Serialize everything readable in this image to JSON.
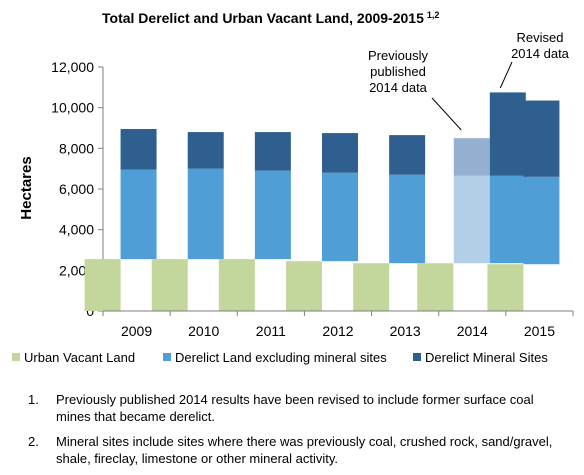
{
  "chart_data": {
    "type": "bar",
    "stacked": true,
    "title": "Total Derelict and Urban Vacant Land, 2009-2015",
    "title_superscript": "1,2",
    "ylabel": "Hectares",
    "xlabel": "",
    "ylim": [
      0,
      12000
    ],
    "yticks": [
      "0",
      "2,000",
      "4,000",
      "6,000",
      "8,000",
      "10,000",
      "12,000"
    ],
    "grid": false,
    "legend_position": "bottom",
    "categories": [
      "2009",
      "2010",
      "2011",
      "2012",
      "2013",
      "2014",
      "2015"
    ],
    "legend": [
      {
        "name": "Urban Vacant Land",
        "color": "#c3d69b"
      },
      {
        "name": "Derelict Land excluding mineral sites",
        "color": "#4f9fd6"
      },
      {
        "name": "Derelict Mineral Sites",
        "color": "#2e5f8e"
      }
    ],
    "series": [
      {
        "name": "Urban Vacant Land",
        "values": [
          2550,
          2550,
          2550,
          2450,
          2350,
          2350,
          2300
        ]
      },
      {
        "name": "Derelict Land excluding mineral sites",
        "values": [
          4400,
          4450,
          4350,
          4350,
          4350,
          4300,
          4300
        ]
      },
      {
        "name": "Derelict Mineral Sites",
        "values": [
          2000,
          1800,
          1900,
          1950,
          1950,
          4100,
          3750
        ]
      }
    ],
    "previously_published_2014": {
      "derelict_excluding_mineral": 4300,
      "derelict_mineral": 1850
    },
    "previously_published_colors": {
      "derelict_excluding_mineral": "#b3cfe8",
      "derelict_mineral": "#95afd0"
    },
    "annotations": [
      {
        "text": [
          "Previously",
          "published",
          "2014 data"
        ]
      },
      {
        "text": [
          "Revised",
          "2014 data"
        ]
      }
    ]
  },
  "notes": [
    {
      "num": "1.",
      "text": "Previously published 2014 results have been revised to include former surface coal mines that became derelict."
    },
    {
      "num": "2.",
      "text": "Mineral sites include sites where there was previously coal, crushed rock, sand/gravel, shale, fireclay, limestone or other mineral activity."
    }
  ]
}
